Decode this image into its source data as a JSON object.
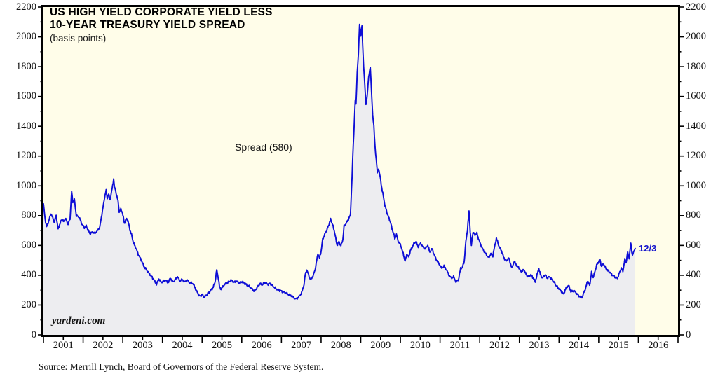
{
  "header": {
    "title_line1": "US HIGH YIELD CORPORATE YIELD LESS",
    "title_line2": "10-YEAR TREASURY YIELD SPREAD",
    "subtitle": "(basis points)"
  },
  "labels": {
    "series_annotation": "Spread (580)",
    "latest_point": "12/3",
    "watermark": "yardeni.com",
    "source": "Source: Merrill Lynch, Board of Governors of the Federal Reserve System."
  },
  "axes": {
    "y_labeled_ticks": [
      0,
      200,
      400,
      600,
      800,
      1000,
      1200,
      1400,
      1600,
      1800,
      2000,
      2200
    ],
    "y_minor_step": 100,
    "x_year_labels": [
      "2001",
      "2002",
      "2003",
      "2004",
      "2005",
      "2006",
      "2007",
      "2008",
      "2009",
      "2010",
      "2011",
      "2012",
      "2013",
      "2014",
      "2015",
      "2016"
    ]
  },
  "chart_data": {
    "type": "area",
    "title": "US HIGH YIELD CORPORATE YIELD LESS 10-YEAR TREASURY YIELD SPREAD",
    "ylabel": "basis points",
    "xlabel": "",
    "ylim": [
      0,
      2200
    ],
    "x_range": [
      2001,
      2017
    ],
    "grid": false,
    "legend_position": "none",
    "colors": {
      "line": "#0d0dd6",
      "fill": "#ededf0",
      "plot_background": "#fffde9",
      "annotation_blue": "#1414cc"
    },
    "series": [
      {
        "name": "Spread",
        "latest_value": 580,
        "latest_date_label": "12/3",
        "points": [
          [
            2001.0,
            880
          ],
          [
            2001.04,
            780
          ],
          [
            2001.08,
            725
          ],
          [
            2001.13,
            762
          ],
          [
            2001.19,
            815
          ],
          [
            2001.23,
            788
          ],
          [
            2001.27,
            757
          ],
          [
            2001.32,
            800
          ],
          [
            2001.37,
            710
          ],
          [
            2001.42,
            748
          ],
          [
            2001.46,
            776
          ],
          [
            2001.51,
            760
          ],
          [
            2001.55,
            782
          ],
          [
            2001.62,
            743
          ],
          [
            2001.67,
            781
          ],
          [
            2001.71,
            960
          ],
          [
            2001.74,
            893
          ],
          [
            2001.78,
            907
          ],
          [
            2001.83,
            800
          ],
          [
            2001.9,
            790
          ],
          [
            2001.97,
            743
          ],
          [
            2002.03,
            720
          ],
          [
            2002.08,
            731
          ],
          [
            2002.13,
            700
          ],
          [
            2002.17,
            680
          ],
          [
            2002.24,
            688
          ],
          [
            2002.29,
            682
          ],
          [
            2002.35,
            696
          ],
          [
            2002.42,
            722
          ],
          [
            2002.46,
            790
          ],
          [
            2002.5,
            851
          ],
          [
            2002.54,
            922
          ],
          [
            2002.58,
            968
          ],
          [
            2002.61,
            917
          ],
          [
            2002.64,
            945
          ],
          [
            2002.68,
            907
          ],
          [
            2002.72,
            964
          ],
          [
            2002.77,
            1045
          ],
          [
            2002.79,
            992
          ],
          [
            2002.82,
            968
          ],
          [
            2002.88,
            898
          ],
          [
            2002.91,
            827
          ],
          [
            2002.95,
            841
          ],
          [
            2002.99,
            822
          ],
          [
            2003.04,
            748
          ],
          [
            2003.09,
            781
          ],
          [
            2003.13,
            766
          ],
          [
            2003.18,
            705
          ],
          [
            2003.22,
            672
          ],
          [
            2003.27,
            616
          ],
          [
            2003.32,
            590
          ],
          [
            2003.39,
            540
          ],
          [
            2003.48,
            494
          ],
          [
            2003.53,
            461
          ],
          [
            2003.62,
            428
          ],
          [
            2003.7,
            400
          ],
          [
            2003.78,
            372
          ],
          [
            2003.85,
            340
          ],
          [
            2003.91,
            376
          ],
          [
            2003.97,
            352
          ],
          [
            2004.08,
            366
          ],
          [
            2004.14,
            350
          ],
          [
            2004.2,
            381
          ],
          [
            2004.27,
            355
          ],
          [
            2004.33,
            372
          ],
          [
            2004.38,
            390
          ],
          [
            2004.44,
            362
          ],
          [
            2004.5,
            372
          ],
          [
            2004.56,
            355
          ],
          [
            2004.62,
            368
          ],
          [
            2004.68,
            352
          ],
          [
            2004.77,
            345
          ],
          [
            2004.85,
            300
          ],
          [
            2004.91,
            270
          ],
          [
            2004.95,
            258
          ],
          [
            2005.0,
            272
          ],
          [
            2005.05,
            252
          ],
          [
            2005.12,
            270
          ],
          [
            2005.2,
            292
          ],
          [
            2005.28,
            320
          ],
          [
            2005.33,
            360
          ],
          [
            2005.37,
            437
          ],
          [
            2005.41,
            380
          ],
          [
            2005.44,
            322
          ],
          [
            2005.48,
            306
          ],
          [
            2005.54,
            330
          ],
          [
            2005.6,
            345
          ],
          [
            2005.69,
            358
          ],
          [
            2005.74,
            367
          ],
          [
            2005.8,
            352
          ],
          [
            2005.87,
            361
          ],
          [
            2005.93,
            348
          ],
          [
            2006.01,
            357
          ],
          [
            2006.08,
            344
          ],
          [
            2006.13,
            334
          ],
          [
            2006.22,
            321
          ],
          [
            2006.28,
            300
          ],
          [
            2006.33,
            296
          ],
          [
            2006.4,
            322
          ],
          [
            2006.45,
            343
          ],
          [
            2006.52,
            336
          ],
          [
            2006.58,
            352
          ],
          [
            2006.65,
            340
          ],
          [
            2006.72,
            345
          ],
          [
            2006.8,
            325
          ],
          [
            2006.86,
            310
          ],
          [
            2006.93,
            300
          ],
          [
            2006.98,
            296
          ],
          [
            2007.05,
            288
          ],
          [
            2007.11,
            282
          ],
          [
            2007.18,
            270
          ],
          [
            2007.25,
            263
          ],
          [
            2007.31,
            250
          ],
          [
            2007.37,
            240
          ],
          [
            2007.44,
            255
          ],
          [
            2007.51,
            282
          ],
          [
            2007.57,
            340
          ],
          [
            2007.6,
            404
          ],
          [
            2007.64,
            437
          ],
          [
            2007.7,
            390
          ],
          [
            2007.74,
            367
          ],
          [
            2007.78,
            390
          ],
          [
            2007.81,
            404
          ],
          [
            2007.85,
            440
          ],
          [
            2007.89,
            500
          ],
          [
            2007.92,
            546
          ],
          [
            2007.96,
            515
          ],
          [
            2008.0,
            560
          ],
          [
            2008.04,
            640
          ],
          [
            2008.09,
            673
          ],
          [
            2008.14,
            700
          ],
          [
            2008.19,
            735
          ],
          [
            2008.24,
            775
          ],
          [
            2008.29,
            740
          ],
          [
            2008.34,
            690
          ],
          [
            2008.4,
            602
          ],
          [
            2008.45,
            625
          ],
          [
            2008.5,
            598
          ],
          [
            2008.55,
            640
          ],
          [
            2008.58,
            729
          ],
          [
            2008.62,
            745
          ],
          [
            2008.66,
            762
          ],
          [
            2008.7,
            781
          ],
          [
            2008.74,
            805
          ],
          [
            2008.78,
            1058
          ],
          [
            2008.81,
            1274
          ],
          [
            2008.84,
            1438
          ],
          [
            2008.86,
            1575
          ],
          [
            2008.88,
            1542
          ],
          [
            2008.91,
            1763
          ],
          [
            2008.94,
            1885
          ],
          [
            2008.97,
            2085
          ],
          [
            2009.0,
            2010
          ],
          [
            2009.03,
            2069
          ],
          [
            2009.06,
            1871
          ],
          [
            2009.1,
            1683
          ],
          [
            2009.13,
            1542
          ],
          [
            2009.16,
            1603
          ],
          [
            2009.2,
            1730
          ],
          [
            2009.24,
            1800
          ],
          [
            2009.27,
            1636
          ],
          [
            2009.3,
            1481
          ],
          [
            2009.33,
            1401
          ],
          [
            2009.36,
            1260
          ],
          [
            2009.39,
            1180
          ],
          [
            2009.42,
            1086
          ],
          [
            2009.45,
            1119
          ],
          [
            2009.49,
            1058
          ],
          [
            2009.53,
            987
          ],
          [
            2009.57,
            930
          ],
          [
            2009.61,
            870
          ],
          [
            2009.66,
            822
          ],
          [
            2009.7,
            790
          ],
          [
            2009.75,
            756
          ],
          [
            2009.79,
            710
          ],
          [
            2009.83,
            680
          ],
          [
            2009.86,
            645
          ],
          [
            2009.9,
            672
          ],
          [
            2009.95,
            625
          ],
          [
            2010.01,
            600
          ],
          [
            2010.07,
            545
          ],
          [
            2010.12,
            494
          ],
          [
            2010.16,
            540
          ],
          [
            2010.21,
            522
          ],
          [
            2010.25,
            564
          ],
          [
            2010.3,
            590
          ],
          [
            2010.34,
            611
          ],
          [
            2010.39,
            625
          ],
          [
            2010.45,
            592
          ],
          [
            2010.51,
            616
          ],
          [
            2010.57,
            587
          ],
          [
            2010.63,
            578
          ],
          [
            2010.69,
            602
          ],
          [
            2010.74,
            555
          ],
          [
            2010.8,
            578
          ],
          [
            2010.86,
            531
          ],
          [
            2010.92,
            498
          ],
          [
            2010.98,
            475
          ],
          [
            2011.04,
            447
          ],
          [
            2011.1,
            461
          ],
          [
            2011.16,
            437
          ],
          [
            2011.22,
            404
          ],
          [
            2011.28,
            381
          ],
          [
            2011.34,
            390
          ],
          [
            2011.4,
            357
          ],
          [
            2011.46,
            368
          ],
          [
            2011.52,
            447
          ],
          [
            2011.56,
            451
          ],
          [
            2011.61,
            494
          ],
          [
            2011.65,
            625
          ],
          [
            2011.69,
            705
          ],
          [
            2011.73,
            830
          ],
          [
            2011.76,
            696
          ],
          [
            2011.79,
            600
          ],
          [
            2011.83,
            690
          ],
          [
            2011.88,
            672
          ],
          [
            2011.93,
            682
          ],
          [
            2011.98,
            635
          ],
          [
            2012.07,
            578
          ],
          [
            2012.16,
            540
          ],
          [
            2012.23,
            517
          ],
          [
            2012.28,
            545
          ],
          [
            2012.33,
            531
          ],
          [
            2012.42,
            649
          ],
          [
            2012.49,
            592
          ],
          [
            2012.55,
            564
          ],
          [
            2012.6,
            522
          ],
          [
            2012.67,
            494
          ],
          [
            2012.73,
            517
          ],
          [
            2012.78,
            475
          ],
          [
            2012.81,
            447
          ],
          [
            2012.87,
            494
          ],
          [
            2012.94,
            461
          ],
          [
            2012.99,
            451
          ],
          [
            2013.04,
            423
          ],
          [
            2013.12,
            437
          ],
          [
            2013.17,
            404
          ],
          [
            2013.22,
            390
          ],
          [
            2013.29,
            404
          ],
          [
            2013.35,
            381
          ],
          [
            2013.4,
            357
          ],
          [
            2013.49,
            447
          ],
          [
            2013.53,
            404
          ],
          [
            2013.58,
            381
          ],
          [
            2013.65,
            404
          ],
          [
            2013.7,
            381
          ],
          [
            2013.76,
            390
          ],
          [
            2013.83,
            367
          ],
          [
            2013.88,
            352
          ],
          [
            2013.93,
            329
          ],
          [
            2014.0,
            310
          ],
          [
            2014.05,
            296
          ],
          [
            2014.11,
            273
          ],
          [
            2014.18,
            315
          ],
          [
            2014.24,
            332
          ],
          [
            2014.3,
            290
          ],
          [
            2014.38,
            296
          ],
          [
            2014.45,
            275
          ],
          [
            2014.52,
            258
          ],
          [
            2014.58,
            250
          ],
          [
            2014.63,
            287
          ],
          [
            2014.68,
            320
          ],
          [
            2014.72,
            366
          ],
          [
            2014.77,
            330
          ],
          [
            2014.82,
            420
          ],
          [
            2014.86,
            385
          ],
          [
            2014.9,
            420
          ],
          [
            2014.95,
            468
          ],
          [
            2015.03,
            506
          ],
          [
            2015.07,
            460
          ],
          [
            2015.12,
            476
          ],
          [
            2015.2,
            437
          ],
          [
            2015.28,
            420
          ],
          [
            2015.35,
            400
          ],
          [
            2015.42,
            386
          ],
          [
            2015.47,
            380
          ],
          [
            2015.52,
            414
          ],
          [
            2015.57,
            447
          ],
          [
            2015.61,
            428
          ],
          [
            2015.66,
            506
          ],
          [
            2015.69,
            484
          ],
          [
            2015.73,
            552
          ],
          [
            2015.77,
            517
          ],
          [
            2015.81,
            614
          ],
          [
            2015.85,
            531
          ],
          [
            2015.88,
            556
          ],
          [
            2015.92,
            580
          ]
        ]
      }
    ]
  }
}
